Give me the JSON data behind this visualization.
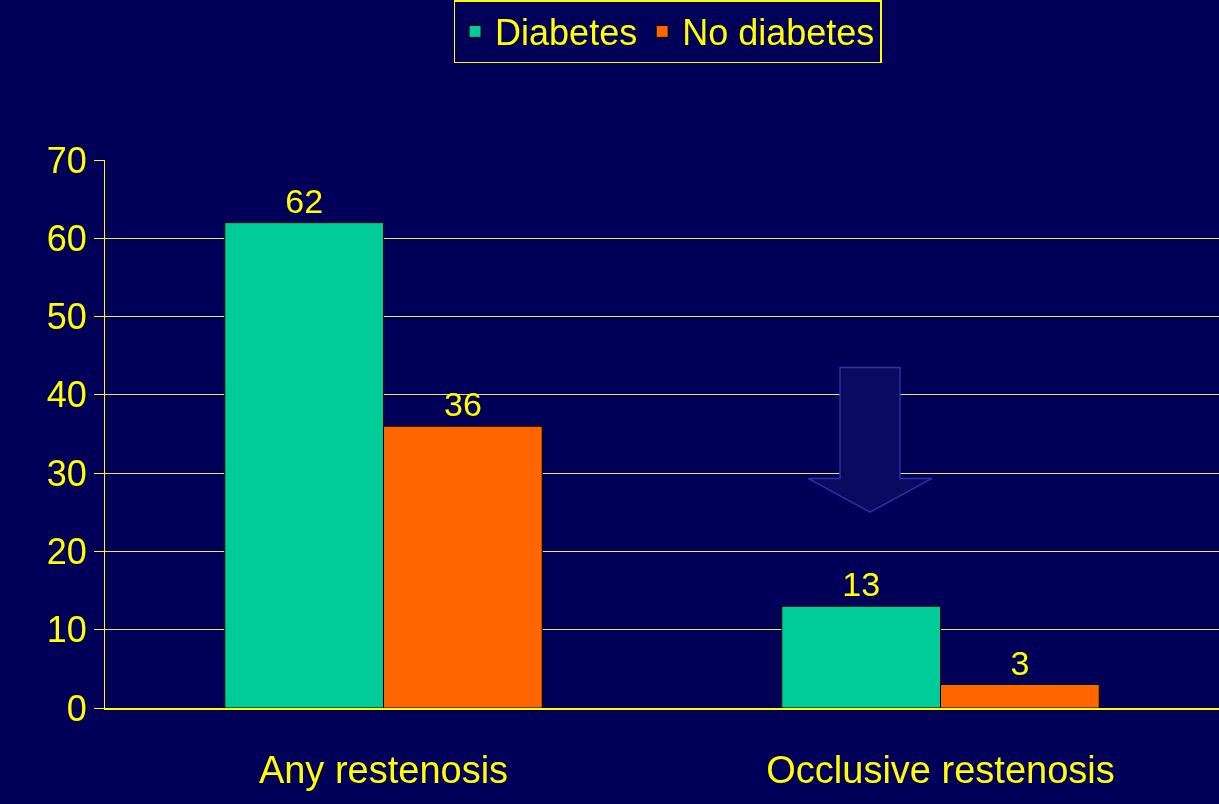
{
  "chart_data": {
    "type": "bar",
    "categories": [
      "Any restenosis",
      "Occlusive restenosis"
    ],
    "series": [
      {
        "name": "Diabetes",
        "color": "#00cc99",
        "values": [
          62,
          13
        ]
      },
      {
        "name": "No diabetes",
        "color": "#ff6600",
        "values": [
          36,
          3
        ]
      }
    ],
    "ylim": [
      0,
      70
    ],
    "yticks": [
      0,
      10,
      20,
      30,
      40,
      50,
      60,
      70
    ],
    "grid": "y",
    "legend": "top",
    "data_labels": true
  }
}
